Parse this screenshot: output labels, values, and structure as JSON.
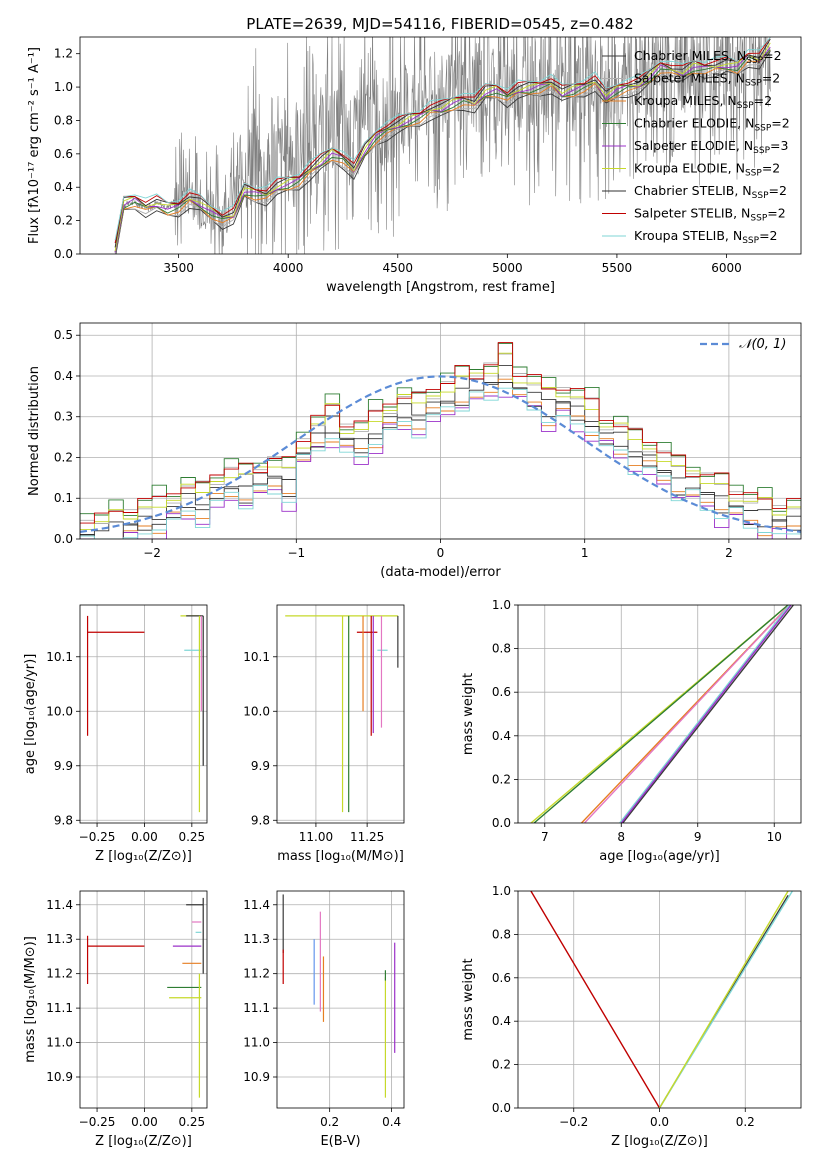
{
  "figure_title": "PLATE=2639, MJD=54116, FIBERID=0545, z=0.482",
  "colors": {
    "spectrum": "#808080",
    "grid": "#b0b0b0",
    "gauss": "#5b8bd6",
    "models": [
      "#3a3a3a",
      "#b0b0b0",
      "#e67e22",
      "#2e7d32",
      "#9b30c9",
      "#c6d92a",
      "#303030",
      "#c00000",
      "#7fd6d6",
      "#e377c2",
      "#6495ed",
      "#d2b48c"
    ]
  },
  "legend": [
    {
      "key": "chab_miles",
      "text": "Chabrier MILES, N",
      "sub": "SSP",
      "tail": "=2",
      "color": "#3a3a3a"
    },
    {
      "key": "salp_miles",
      "text": "Salpeter MILES, N",
      "sub": "SSP",
      "tail": "=2",
      "color": "#b0b0b0"
    },
    {
      "key": "krou_miles",
      "text": "Kroupa MILES, N",
      "sub": "SSP",
      "tail": "=2",
      "color": "#e67e22"
    },
    {
      "key": "chab_elodie",
      "text": "Chabrier ELODIE, N",
      "sub": "SSP",
      "tail": "=2",
      "color": "#2e7d32"
    },
    {
      "key": "salp_elodie",
      "text": "Salpeter ELODIE, N",
      "sub": "SSP",
      "tail": "=3",
      "color": "#9b30c9"
    },
    {
      "key": "krou_elodie",
      "text": "Kroupa ELODIE, N",
      "sub": "SSP",
      "tail": "=2",
      "color": "#c6d92a"
    },
    {
      "key": "chab_stelib",
      "text": "Chabrier STELIB, N",
      "sub": "SSP",
      "tail": "=2",
      "color": "#303030"
    },
    {
      "key": "salp_stelib",
      "text": "Salpeter STELIB, N",
      "sub": "SSP",
      "tail": "=2",
      "color": "#c00000"
    },
    {
      "key": "krou_stelib",
      "text": "Kroupa STELIB, N",
      "sub": "SSP",
      "tail": "=2",
      "color": "#7fd6d6"
    }
  ],
  "chart_data": [
    {
      "id": "spectrum",
      "type": "line",
      "xlabel": "wavelength [Angstrom, rest frame]",
      "ylabel": "Flux [fλ10⁻¹⁷ erg cm⁻² s⁻¹ A⁻¹]",
      "xlim": [
        3050,
        6340
      ],
      "ylim": [
        0,
        1.3
      ],
      "xticks": [
        3500,
        4000,
        4500,
        5000,
        5500,
        6000
      ],
      "yticks": [
        0.0,
        0.2,
        0.4,
        0.6,
        0.8,
        1.0,
        1.2
      ],
      "ytick_labels": [
        "0.0",
        "0.2",
        "0.4",
        "0.6",
        "0.8",
        "1.0",
        "1.2"
      ],
      "grid": false,
      "legend_loc": "upper-right",
      "model_x": [
        3210,
        3250,
        3300,
        3350,
        3400,
        3450,
        3500,
        3550,
        3600,
        3650,
        3700,
        3750,
        3800,
        3850,
        3900,
        3950,
        4000,
        4050,
        4100,
        4150,
        4200,
        4250,
        4300,
        4350,
        4400,
        4450,
        4500,
        4550,
        4600,
        4650,
        4700,
        4750,
        4800,
        4850,
        4900,
        4950,
        5000,
        5050,
        5100,
        5150,
        5200,
        5250,
        5300,
        5350,
        5400,
        5450,
        5500,
        5550,
        5600,
        5650,
        5700,
        5750,
        5800,
        5850,
        5900,
        5950,
        6000,
        6050,
        6100,
        6150,
        6200
      ],
      "model_y": [
        0.02,
        0.3,
        0.32,
        0.28,
        0.3,
        0.27,
        0.28,
        0.33,
        0.3,
        0.25,
        0.21,
        0.23,
        0.38,
        0.36,
        0.35,
        0.4,
        0.42,
        0.44,
        0.5,
        0.55,
        0.6,
        0.57,
        0.5,
        0.62,
        0.7,
        0.74,
        0.77,
        0.8,
        0.82,
        0.86,
        0.87,
        0.9,
        0.92,
        0.9,
        0.97,
        0.98,
        0.94,
        0.98,
        0.99,
        1.0,
        1.02,
        0.96,
        0.98,
        1.0,
        1.03,
        0.94,
        0.98,
        1.0,
        1.01,
        1.06,
        1.12,
        1.1,
        1.08,
        1.12,
        1.11,
        1.12,
        1.13,
        1.12,
        1.18,
        1.16,
        1.25
      ],
      "obs_x": [
        3210,
        3250,
        3300,
        3350,
        3400,
        3450,
        3500,
        3550,
        3600,
        3650,
        3700,
        3750,
        3800,
        3850,
        3900,
        3950,
        4000,
        4050,
        4100,
        4150,
        4200,
        4250,
        4300,
        4350,
        4400,
        4450,
        4500,
        4550,
        4600,
        4650,
        4700,
        4750,
        4800,
        4850,
        4900,
        4950,
        5000,
        5050,
        5100,
        5150,
        5200,
        5250,
        5300,
        5350,
        5400,
        5450,
        5500,
        5550,
        5600,
        5650,
        5700,
        5750,
        5800,
        5850,
        5900,
        5950,
        6000,
        6050,
        6100,
        6150,
        6200
      ],
      "obs_y": [
        0.02,
        0.3,
        0.31,
        0.28,
        0.3,
        0.28,
        0.35,
        0.38,
        0.3,
        0.3,
        0.25,
        0.35,
        0.5,
        0.55,
        0.45,
        0.55,
        0.62,
        0.6,
        0.7,
        0.68,
        0.75,
        0.7,
        0.65,
        0.8,
        0.82,
        0.78,
        0.85,
        0.88,
        0.95,
        0.9,
        0.92,
        0.95,
        1.0,
        0.98,
        1.05,
        1.0,
        0.95,
        1.02,
        1.0,
        1.05,
        0.95,
        1.0,
        0.98,
        1.02,
        1.05,
        0.95,
        1.0,
        1.02,
        1.05,
        1.08,
        1.12,
        1.1,
        1.1,
        1.12,
        1.12,
        1.13,
        1.15,
        1.12,
        1.2,
        1.18,
        1.25
      ]
    },
    {
      "id": "residuals",
      "type": "histogram",
      "xlabel": "(data-model)/error",
      "ylabel": "Normed distribution",
      "xlim": [
        -2.5,
        2.5
      ],
      "ylim": [
        0,
        0.53
      ],
      "xticks": [
        -2,
        -1,
        0,
        1,
        2
      ],
      "xtick_labels": [
        "−2",
        "−1",
        "0",
        "1",
        "2"
      ],
      "yticks": [
        0.0,
        0.1,
        0.2,
        0.3,
        0.4,
        0.5
      ],
      "ytick_labels": [
        "0.0",
        "0.1",
        "0.2",
        "0.3",
        "0.4",
        "0.5"
      ],
      "grid": true,
      "legend": [
        {
          "text": "𝒩(0, 1)",
          "style": "dashed"
        }
      ],
      "legend_loc": "upper-right",
      "bin_edges": [
        -2.5,
        -2.4,
        -2.3,
        -2.2,
        -2.1,
        -2.0,
        -1.9,
        -1.8,
        -1.7,
        -1.6,
        -1.5,
        -1.4,
        -1.3,
        -1.2,
        -1.1,
        -1.0,
        -0.9,
        -0.8,
        -0.7,
        -0.6,
        -0.5,
        -0.4,
        -0.3,
        -0.2,
        -0.1,
        0.0,
        0.1,
        0.2,
        0.3,
        0.4,
        0.5,
        0.6,
        0.7,
        0.8,
        0.9,
        1.0,
        1.1,
        1.2,
        1.3,
        1.4,
        1.5,
        1.6,
        1.7,
        1.8,
        1.9,
        2.0,
        2.1,
        2.2,
        2.3,
        2.4,
        2.5
      ],
      "hist": [
        0.02,
        0.02,
        0.03,
        0.04,
        0.05,
        0.06,
        0.08,
        0.1,
        0.09,
        0.12,
        0.14,
        0.13,
        0.15,
        0.16,
        0.14,
        0.22,
        0.26,
        0.29,
        0.25,
        0.24,
        0.27,
        0.3,
        0.32,
        0.31,
        0.33,
        0.35,
        0.37,
        0.38,
        0.39,
        0.42,
        0.38,
        0.36,
        0.33,
        0.34,
        0.32,
        0.3,
        0.26,
        0.25,
        0.22,
        0.2,
        0.18,
        0.15,
        0.14,
        0.12,
        0.1,
        0.09,
        0.07,
        0.06,
        0.05,
        0.05
      ],
      "offsets": [
        0,
        0.02,
        -0.02,
        0.03,
        -0.03,
        0.015,
        -0.015,
        0.025,
        -0.025
      ],
      "gauss_mu": 0,
      "gauss_sigma": 1
    },
    {
      "id": "age_Z",
      "type": "scatter-errorbar",
      "xlabel": "Z [log₁₀(Z/Z⊙)]",
      "ylabel": "age  [log₁₀(age/yr)]",
      "xlim": [
        -0.34,
        0.33
      ],
      "ylim": [
        9.795,
        10.195
      ],
      "xticks": [
        -0.25,
        0.0,
        0.25
      ],
      "xtick_labels": [
        "−0.25",
        "0.00",
        "0.25"
      ],
      "yticks": [
        9.8,
        9.9,
        10.0,
        10.1
      ],
      "ytick_labels": [
        "9.8",
        "9.9",
        "10.0",
        "10.1"
      ],
      "grid": true,
      "segments": [
        {
          "c": 7,
          "x0": -0.3,
          "x1": 0.0,
          "y0": 10.145,
          "y1": 10.145
        },
        {
          "c": 7,
          "x0": -0.3,
          "x1": -0.3,
          "y0": 9.955,
          "y1": 10.175
        },
        {
          "c": 5,
          "x0": 0.19,
          "x1": 0.3,
          "y0": 10.175,
          "y1": 10.175
        },
        {
          "c": 0,
          "x0": 0.22,
          "x1": 0.31,
          "y0": 10.175,
          "y1": 10.175
        },
        {
          "c": 8,
          "x0": 0.21,
          "x1": 0.3,
          "y0": 10.112,
          "y1": 10.112
        },
        {
          "c": 9,
          "x0": 0.3,
          "x1": 0.3,
          "y0": 10.0,
          "y1": 10.175
        },
        {
          "c": 5,
          "x0": 0.29,
          "x1": 0.29,
          "y0": 9.815,
          "y1": 10.175
        },
        {
          "c": 6,
          "x0": 0.31,
          "x1": 0.31,
          "y0": 9.9,
          "y1": 10.175
        }
      ]
    },
    {
      "id": "age_mass",
      "type": "scatter-errorbar",
      "xlabel": "mass [log₁₀(M/M⊙)]",
      "ylabel": "",
      "xlim": [
        10.81,
        11.43
      ],
      "ylim": [
        9.795,
        10.195
      ],
      "xticks": [
        11.0,
        11.25
      ],
      "xtick_labels": [
        "11.00",
        "11.25"
      ],
      "yticks": [
        9.8,
        9.9,
        10.0,
        10.1
      ],
      "ytick_labels": [
        "9.8",
        "9.9",
        "10.0",
        "10.1"
      ],
      "grid": true,
      "segments": [
        {
          "c": 5,
          "x0": 10.85,
          "x1": 11.4,
          "y0": 10.175,
          "y1": 10.175
        },
        {
          "c": 7,
          "x0": 11.2,
          "x1": 11.3,
          "y0": 10.145,
          "y1": 10.145
        },
        {
          "c": 8,
          "x0": 11.3,
          "x1": 11.35,
          "y0": 10.112,
          "y1": 10.112
        },
        {
          "c": 5,
          "x0": 11.13,
          "x1": 11.13,
          "y0": 9.815,
          "y1": 10.175
        },
        {
          "c": 3,
          "x0": 11.16,
          "x1": 11.16,
          "y0": 9.815,
          "y1": 10.175
        },
        {
          "c": 2,
          "x0": 11.23,
          "x1": 11.23,
          "y0": 10.0,
          "y1": 10.175
        },
        {
          "c": 7,
          "x0": 11.27,
          "x1": 11.27,
          "y0": 9.955,
          "y1": 10.175
        },
        {
          "c": 4,
          "x0": 11.28,
          "x1": 11.28,
          "y0": 9.96,
          "y1": 10.175
        },
        {
          "c": 9,
          "x0": 11.32,
          "x1": 11.32,
          "y0": 9.97,
          "y1": 10.175
        },
        {
          "c": 0,
          "x0": 11.4,
          "x1": 11.4,
          "y0": 10.08,
          "y1": 10.175
        }
      ]
    },
    {
      "id": "cum_age",
      "type": "line",
      "xlabel": "age  [log₁₀(age/yr)]",
      "ylabel": "mass weight",
      "xlim": [
        6.65,
        10.35
      ],
      "ylim": [
        0,
        1
      ],
      "xticks": [
        7,
        8,
        9,
        10
      ],
      "xtick_labels": [
        "7",
        "8",
        "9",
        "10"
      ],
      "yticks": [
        0.0,
        0.2,
        0.4,
        0.6,
        0.8,
        1.0
      ],
      "ytick_labels": [
        "0.0",
        "0.2",
        "0.4",
        "0.6",
        "0.8",
        "1.0"
      ],
      "grid": true,
      "lines": [
        {
          "c": 5,
          "x": [
            6.82,
            10.18
          ],
          "y": [
            0,
            1
          ]
        },
        {
          "c": 3,
          "x": [
            6.86,
            10.18
          ],
          "y": [
            0,
            1
          ]
        },
        {
          "c": 2,
          "x": [
            7.48,
            10.2
          ],
          "y": [
            0,
            1
          ]
        },
        {
          "c": 9,
          "x": [
            7.52,
            10.2
          ],
          "y": [
            0,
            1
          ]
        },
        {
          "c": 8,
          "x": [
            7.98,
            10.2
          ],
          "y": [
            0,
            1
          ]
        },
        {
          "c": 0,
          "x": [
            8.02,
            10.25
          ],
          "y": [
            0,
            1
          ]
        },
        {
          "c": 4,
          "x": [
            8.0,
            10.22
          ],
          "y": [
            0,
            1
          ]
        }
      ]
    },
    {
      "id": "mass_Z",
      "type": "scatter-errorbar",
      "xlabel": "Z [log₁₀(Z/Z⊙)]",
      "ylabel": "mass [log₁₀(M/M⊙)]",
      "xlim": [
        -0.34,
        0.33
      ],
      "ylim": [
        10.81,
        11.44
      ],
      "xticks": [
        -0.25,
        0.0,
        0.25
      ],
      "xtick_labels": [
        "−0.25",
        "0.00",
        "0.25"
      ],
      "yticks": [
        10.9,
        11.0,
        11.1,
        11.2,
        11.3,
        11.4
      ],
      "ytick_labels": [
        "10.9",
        "11.0",
        "11.1",
        "11.2",
        "11.3",
        "11.4"
      ],
      "grid": true,
      "segments": [
        {
          "c": 7,
          "x0": -0.3,
          "x1": 0.0,
          "y0": 11.28,
          "y1": 11.28
        },
        {
          "c": 7,
          "x0": -0.3,
          "x1": -0.3,
          "y0": 11.17,
          "y1": 11.31
        },
        {
          "c": 0,
          "x0": 0.22,
          "x1": 0.31,
          "y0": 11.4,
          "y1": 11.4
        },
        {
          "c": 9,
          "x0": 0.25,
          "x1": 0.3,
          "y0": 11.35,
          "y1": 11.35
        },
        {
          "c": 8,
          "x0": 0.27,
          "x1": 0.3,
          "y0": 11.32,
          "y1": 11.32
        },
        {
          "c": 4,
          "x0": 0.15,
          "x1": 0.3,
          "y0": 11.28,
          "y1": 11.28
        },
        {
          "c": 2,
          "x0": 0.2,
          "x1": 0.3,
          "y0": 11.23,
          "y1": 11.23
        },
        {
          "c": 3,
          "x0": 0.12,
          "x1": 0.3,
          "y0": 11.16,
          "y1": 11.16
        },
        {
          "c": 5,
          "x0": 0.13,
          "x1": 0.3,
          "y0": 11.13,
          "y1": 11.13
        },
        {
          "c": 5,
          "x0": 0.29,
          "x1": 0.29,
          "y0": 10.84,
          "y1": 11.2
        },
        {
          "c": 6,
          "x0": 0.31,
          "x1": 0.31,
          "y0": 11.2,
          "y1": 11.42
        }
      ]
    },
    {
      "id": "mass_ebv",
      "type": "scatter-errorbar",
      "xlabel": "E(B-V)",
      "ylabel": "",
      "xlim": [
        0.03,
        0.44
      ],
      "ylim": [
        10.81,
        11.44
      ],
      "xticks": [
        0.2,
        0.4
      ],
      "xtick_labels": [
        "0.2",
        "0.4"
      ],
      "yticks": [
        10.9,
        11.0,
        11.1,
        11.2,
        11.3,
        11.4
      ],
      "ytick_labels": [
        "10.9",
        "11.0",
        "11.1",
        "11.2",
        "11.3",
        "11.4"
      ],
      "grid": true,
      "segments": [
        {
          "c": 0,
          "x0": 0.05,
          "x1": 0.05,
          "y0": 11.26,
          "y1": 11.43
        },
        {
          "c": 7,
          "x0": 0.05,
          "x1": 0.05,
          "y0": 11.17,
          "y1": 11.27
        },
        {
          "c": 10,
          "x0": 0.15,
          "x1": 0.15,
          "y0": 11.11,
          "y1": 11.3
        },
        {
          "c": 9,
          "x0": 0.17,
          "x1": 0.17,
          "y0": 11.09,
          "y1": 11.38
        },
        {
          "c": 2,
          "x0": 0.18,
          "x1": 0.18,
          "y0": 11.06,
          "y1": 11.25
        },
        {
          "c": 5,
          "x0": 0.38,
          "x1": 0.38,
          "y0": 10.84,
          "y1": 11.19
        },
        {
          "c": 3,
          "x0": 0.38,
          "x1": 0.38,
          "y0": 11.18,
          "y1": 11.21
        },
        {
          "c": 4,
          "x0": 0.41,
          "x1": 0.41,
          "y0": 10.97,
          "y1": 11.29
        }
      ]
    },
    {
      "id": "cum_Z",
      "type": "line",
      "xlabel": "Z [log₁₀(Z/Z⊙)]",
      "ylabel": "mass weight",
      "xlim": [
        -0.33,
        0.33
      ],
      "ylim": [
        0,
        1
      ],
      "xticks": [
        -0.2,
        0.0,
        0.2
      ],
      "xtick_labels": [
        "−0.2",
        "0.0",
        "0.2"
      ],
      "yticks": [
        0.0,
        0.2,
        0.4,
        0.6,
        0.8,
        1.0
      ],
      "ytick_labels": [
        "0.0",
        "0.2",
        "0.4",
        "0.6",
        "0.8",
        "1.0"
      ],
      "grid": true,
      "lines": [
        {
          "c": 7,
          "x": [
            -0.3,
            0.0
          ],
          "y": [
            1,
            0
          ]
        },
        {
          "c": 0,
          "x": [
            0.0,
            0.3
          ],
          "y": [
            0,
            0.98
          ]
        },
        {
          "c": 8,
          "x": [
            0.0,
            0.31
          ],
          "y": [
            0,
            1
          ]
        },
        {
          "c": 5,
          "x": [
            0.0,
            0.3
          ],
          "y": [
            0,
            1
          ]
        }
      ]
    }
  ]
}
